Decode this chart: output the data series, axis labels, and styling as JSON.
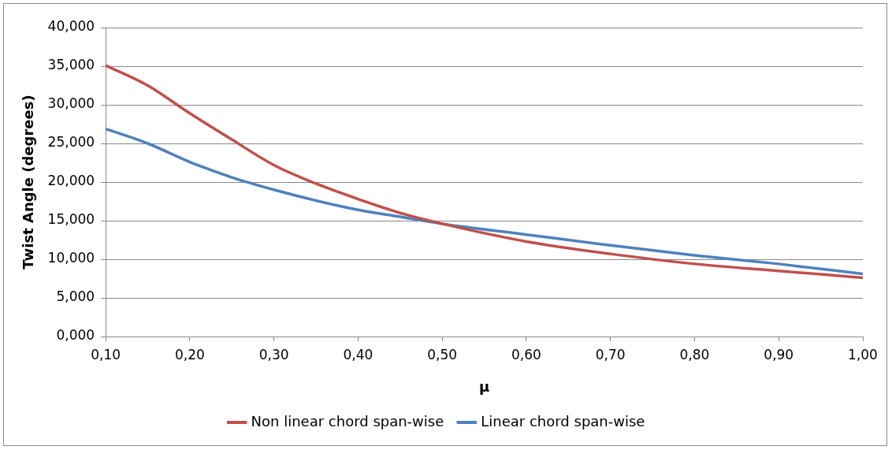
{
  "chart_data": {
    "type": "line",
    "xlabel": "μ",
    "ylabel": "Twist Angle (degrees)",
    "x": [
      0.1,
      0.15,
      0.2,
      0.25,
      0.3,
      0.35,
      0.4,
      0.45,
      0.5,
      0.6,
      0.7,
      0.8,
      0.9,
      1.0
    ],
    "series": [
      {
        "name": "Non linear chord span-wise",
        "color": "#c0504d",
        "values": [
          35.1,
          32.5,
          28.9,
          25.5,
          22.2,
          19.8,
          17.8,
          16.0,
          14.6,
          12.3,
          10.7,
          9.4,
          8.5,
          7.6
        ]
      },
      {
        "name": "Linear chord span-wise",
        "color": "#4f81bd",
        "values": [
          26.9,
          25.0,
          22.6,
          20.6,
          19.0,
          17.6,
          16.4,
          15.5,
          14.6,
          13.2,
          11.8,
          10.5,
          9.4,
          8.1
        ]
      }
    ],
    "xlim": [
      0.1,
      1.0
    ],
    "xticks": [
      {
        "value": 0.1,
        "label": "0,10"
      },
      {
        "value": 0.2,
        "label": "0,20"
      },
      {
        "value": 0.3,
        "label": "0,30"
      },
      {
        "value": 0.4,
        "label": "0,40"
      },
      {
        "value": 0.5,
        "label": "0,50"
      },
      {
        "value": 0.6,
        "label": "0,60"
      },
      {
        "value": 0.7,
        "label": "0,70"
      },
      {
        "value": 0.8,
        "label": "0,80"
      },
      {
        "value": 0.9,
        "label": "0,90"
      },
      {
        "value": 1.0,
        "label": "1,00"
      }
    ],
    "ylim": [
      0,
      40
    ],
    "yticks": [
      {
        "value": 0,
        "label": "0,000"
      },
      {
        "value": 5,
        "label": "5,000"
      },
      {
        "value": 10,
        "label": "10,000"
      },
      {
        "value": 15,
        "label": "15,000"
      },
      {
        "value": 20,
        "label": "20,000"
      },
      {
        "value": 25,
        "label": "25,000"
      },
      {
        "value": 30,
        "label": "30,000"
      },
      {
        "value": 35,
        "label": "35,000"
      },
      {
        "value": 40,
        "label": "40,000"
      }
    ],
    "grid": "y",
    "legend": "bottom",
    "marker": "none",
    "line_style": "solid"
  }
}
